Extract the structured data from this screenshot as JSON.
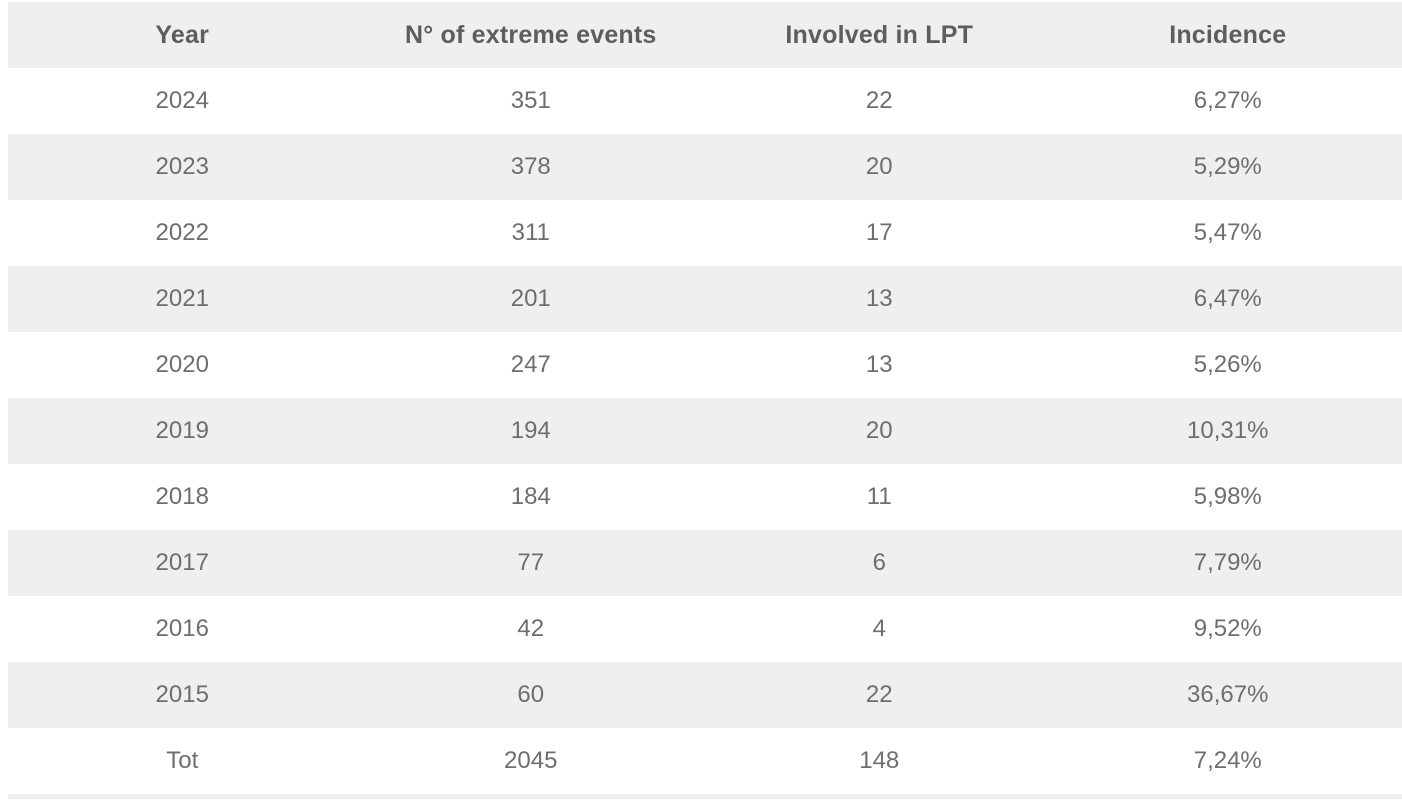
{
  "table": {
    "headers": [
      "Year",
      "N° of extreme events",
      "Involved in LPT",
      "Incidence"
    ],
    "column_keys": [
      "year",
      "extreme-events",
      "involved-in-lpt",
      "incidence"
    ],
    "rows": [
      [
        "2024",
        "351",
        "22",
        "6,27%"
      ],
      [
        "2023",
        "378",
        "20",
        "5,29%"
      ],
      [
        "2022",
        "311",
        "17",
        "5,47%"
      ],
      [
        "2021",
        "201",
        "13",
        "6,47%"
      ],
      [
        "2020",
        "247",
        "13",
        "5,26%"
      ],
      [
        "2019",
        "194",
        "20",
        "10,31%"
      ],
      [
        "2018",
        "184",
        "11",
        "5,98%"
      ],
      [
        "2017",
        "77",
        "6",
        "7,79%"
      ],
      [
        "2016",
        "42",
        "4",
        "9,52%"
      ],
      [
        "2015",
        "60",
        "22",
        "36,67%"
      ],
      [
        "Tot",
        "2045",
        "148",
        "7,24%"
      ]
    ],
    "total_row_label": "Tot"
  },
  "colors": {
    "row_shaded": "#efefef",
    "row_plain": "#ffffff",
    "header_text": "#5d5d5d",
    "cell_text": "#6e6e6e"
  },
  "chart_data": {
    "type": "table",
    "columns": [
      "Year",
      "N° of extreme events",
      "Involved in LPT",
      "Incidence"
    ],
    "rows": [
      {
        "year": "2024",
        "extreme_events": 351,
        "involved_in_lpt": 22,
        "incidence_pct": 6.27
      },
      {
        "year": "2023",
        "extreme_events": 378,
        "involved_in_lpt": 20,
        "incidence_pct": 5.29
      },
      {
        "year": "2022",
        "extreme_events": 311,
        "involved_in_lpt": 17,
        "incidence_pct": 5.47
      },
      {
        "year": "2021",
        "extreme_events": 201,
        "involved_in_lpt": 13,
        "incidence_pct": 6.47
      },
      {
        "year": "2020",
        "extreme_events": 247,
        "involved_in_lpt": 13,
        "incidence_pct": 5.26
      },
      {
        "year": "2019",
        "extreme_events": 194,
        "involved_in_lpt": 20,
        "incidence_pct": 10.31
      },
      {
        "year": "2018",
        "extreme_events": 184,
        "involved_in_lpt": 11,
        "incidence_pct": 5.98
      },
      {
        "year": "2017",
        "extreme_events": 77,
        "involved_in_lpt": 6,
        "incidence_pct": 7.79
      },
      {
        "year": "2016",
        "extreme_events": 42,
        "involved_in_lpt": 4,
        "incidence_pct": 9.52
      },
      {
        "year": "2015",
        "extreme_events": 60,
        "involved_in_lpt": 22,
        "incidence_pct": 36.67
      },
      {
        "year": "Tot",
        "extreme_events": 2045,
        "involved_in_lpt": 148,
        "incidence_pct": 7.24
      }
    ],
    "layout": {
      "header_background": "#efefef",
      "alternating_row_shading": true,
      "decimal_separator": "comma",
      "text_alignment": "center"
    }
  }
}
